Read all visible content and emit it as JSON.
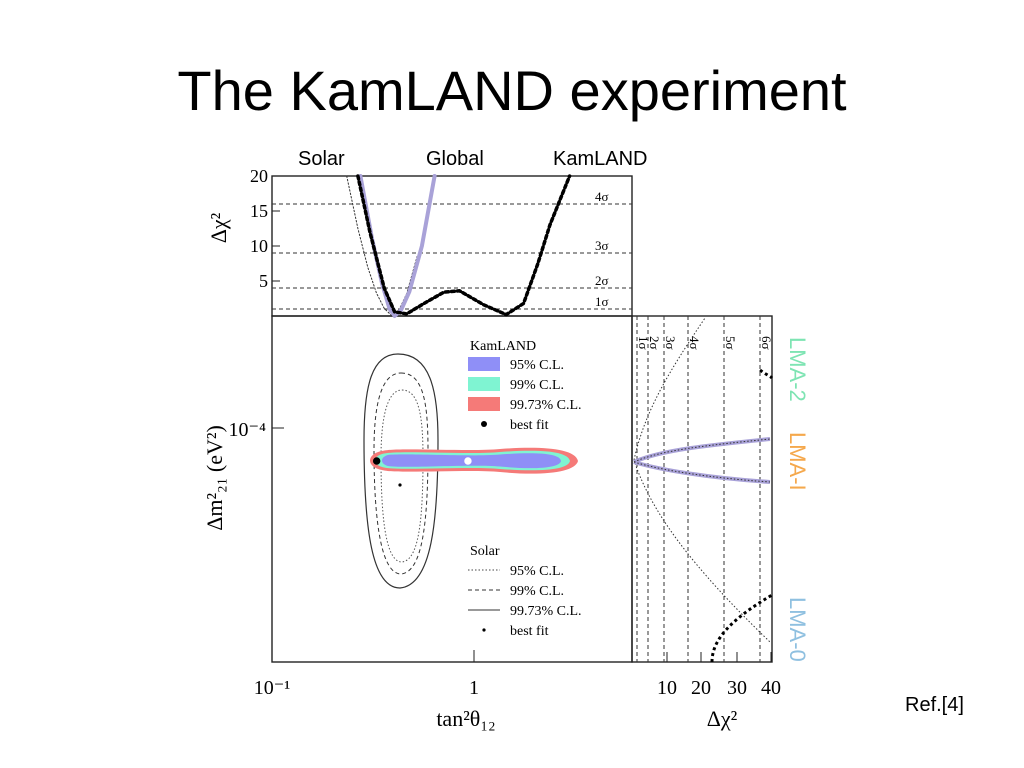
{
  "slide": {
    "title": "The KamLAND experiment",
    "ref": "Ref.[4]"
  },
  "colors": {
    "kam95": "#8f8ff7",
    "kam99": "#7ff4d2",
    "kam9973": "#f57a78",
    "global": "#a9a2d8",
    "lma2": "#7ee4b3",
    "lma1": "#f5a84c",
    "lma0": "#8fc0e0"
  },
  "chart_data": [
    {
      "type": "line",
      "panel": "top",
      "column_labels": [
        "Solar",
        "Global",
        "KamLAND"
      ],
      "ylabel": "Δχ²",
      "xscale": "log",
      "xlim": [
        0.1,
        10
      ],
      "ylim": [
        0,
        20
      ],
      "yticks": [
        "5",
        "10",
        "15",
        "20"
      ],
      "sigma_levels": [
        {
          "label": "1σ",
          "value": 1
        },
        {
          "label": "2σ",
          "value": 4
        },
        {
          "label": "3σ",
          "value": 9
        },
        {
          "label": "4σ",
          "value": 16
        }
      ],
      "series": [
        {
          "name": "Solar",
          "x": [
            0.26,
            0.3,
            0.34,
            0.38,
            0.42,
            0.46,
            0.5,
            0.56,
            0.64
          ],
          "y": [
            20,
            12.5,
            7,
            3.3,
            1.1,
            0.1,
            0.5,
            3.2,
            8.5
          ]
        },
        {
          "name": "Global",
          "x": [
            0.31,
            0.36,
            0.41,
            0.45,
            0.48,
            0.52,
            0.58,
            0.68,
            0.8
          ],
          "y": [
            20,
            11,
            4.5,
            1,
            0,
            0.8,
            3.5,
            10,
            20
          ]
        },
        {
          "name": "KamLAND",
          "x": [
            0.3,
            0.35,
            0.42,
            0.48,
            0.56,
            0.7,
            0.9,
            1.1,
            1.5,
            2,
            2.5,
            3,
            3.5,
            4.5
          ],
          "y": [
            20,
            12,
            4,
            0.6,
            0.3,
            1.8,
            3.4,
            3.6,
            1.6,
            0.2,
            1.8,
            7.5,
            13,
            20
          ]
        }
      ]
    },
    {
      "type": "scatter",
      "panel": "main",
      "xlabel": "tan²θ₁₂",
      "ylabel": "Δm²₂₁ (eV²)",
      "xticks": [
        "10⁻¹",
        "1"
      ],
      "ytick": "10⁻⁴",
      "legend_kamland": {
        "title": "KamLAND",
        "entries": [
          "95% C.L.",
          "99% C.L.",
          "99.73% C.L.",
          "best fit"
        ]
      },
      "legend_solar": {
        "title": "Solar",
        "entries": [
          "95% C.L.",
          "99% C.L.",
          "99.73% C.L.",
          "best fit"
        ]
      },
      "kamland_best_fit": [
        {
          "x": 0.56,
          "y": 7.6e-05
        },
        {
          "x": 1.8,
          "y": 7.6e-05
        }
      ],
      "solar_best_fit": {
        "x": 0.45,
        "y": 6e-05
      }
    },
    {
      "type": "line",
      "panel": "right",
      "xlabel": "Δχ²",
      "xticks": [
        "10",
        "20",
        "30",
        "40"
      ],
      "sigma_labels": [
        "1σ",
        "2σ",
        "3σ",
        "4σ",
        "5σ",
        "6σ"
      ],
      "region_labels": [
        "LMA-2",
        "LMA-I",
        "LMA-0"
      ]
    }
  ]
}
